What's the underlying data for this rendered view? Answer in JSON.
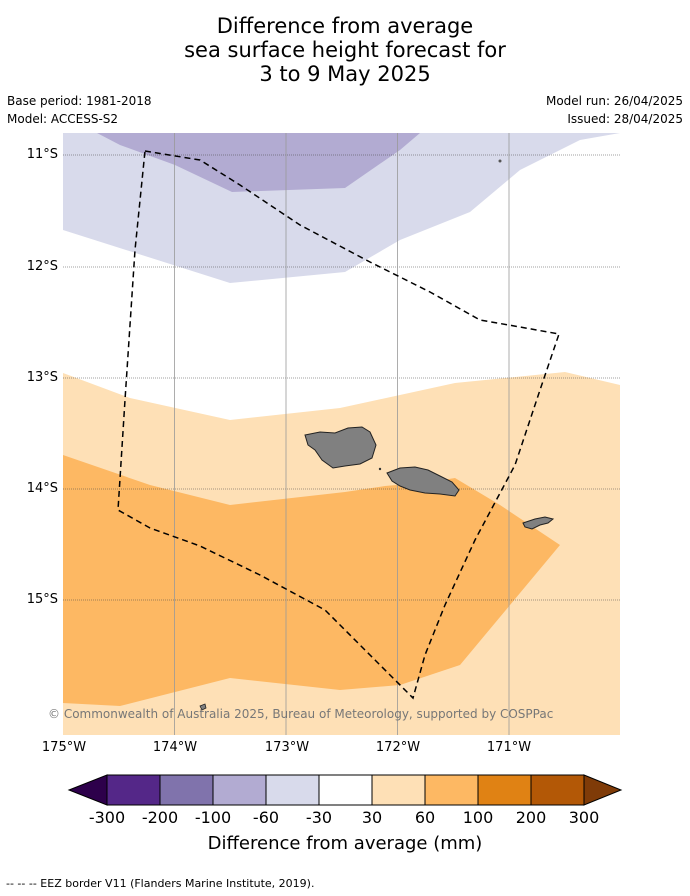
{
  "title": {
    "line1": "Difference from average",
    "line2": "sea surface height forecast for",
    "line3": "3 to 9 May 2025"
  },
  "meta": {
    "base_period": "Base period: 1981-2018",
    "model": "Model: ACCESS-S2",
    "model_run": "Model run: 26/04/2025",
    "issued": "Issued: 28/04/2025"
  },
  "map": {
    "lat_labels": [
      "11°S",
      "12°S",
      "13°S",
      "14°S",
      "15°S"
    ],
    "lon_labels": [
      "175°W",
      "174°W",
      "173°W",
      "172°W",
      "171°W"
    ],
    "copyright": "© Commonwealth of Australia 2025, Bureau of Meteorology, supported by COSPPac",
    "colors": {
      "deep_purple": "#2d004b",
      "purple_300": "#542788",
      "purple_200": "#8073ac",
      "purple_100": "#b2abd2",
      "purple_60": "#d8daeb",
      "neutral": "#ffffff",
      "orange_60": "#fee0b6",
      "orange_100": "#fdb863",
      "orange_200": "#e08214",
      "orange_300": "#b35806",
      "deep_orange": "#7f3b08",
      "land": "#808080"
    }
  },
  "colorbar": {
    "labels": [
      "-300",
      "-200",
      "-100",
      "-60",
      "-30",
      "30",
      "60",
      "100",
      "200",
      "300"
    ],
    "title": "Difference from average (mm)"
  },
  "footer": {
    "legend": "--  --  -- EEZ border V11 (Flanders Marine Institute, 2019)."
  }
}
